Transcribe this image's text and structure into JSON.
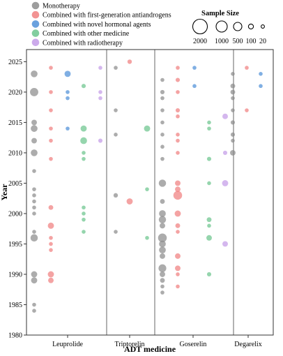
{
  "chart_data": {
    "type": "scatter",
    "title": "",
    "xlabel": "ADT medicine",
    "ylabel": "Year",
    "ylim": [
      1980,
      2027
    ],
    "yticks": [
      1980,
      1985,
      1990,
      1995,
      2000,
      2005,
      2010,
      2015,
      2020,
      2025
    ],
    "categories": [
      "Leuprolide",
      "Triptorelin",
      "Goserelin",
      "Degarelix"
    ],
    "grid": false,
    "legend": {
      "placement": "top-left",
      "entries": [
        {
          "name": "Monotherapy",
          "color": "#8c8c8c"
        },
        {
          "name": "Combined with first-generation antiandrogens",
          "color": "#f08080"
        },
        {
          "name": "Combined with novel hormonal agents",
          "color": "#4f90d8"
        },
        {
          "name": "Combined with other medicine",
          "color": "#6cc58e"
        },
        {
          "name": "Combined with radiotherapy",
          "color": "#c39be8"
        }
      ]
    },
    "size_legend": {
      "title": "Sample Size",
      "values": [
        2000,
        1000,
        500,
        100,
        20
      ],
      "labels": [
        "2000",
        "1000",
        "500",
        "100",
        "20"
      ]
    },
    "series": [
      {
        "name": "Monotherapy",
        "points": [
          {
            "medicine": "Leuprolide",
            "year": 2023,
            "size": 300
          },
          {
            "medicine": "Leuprolide",
            "year": 2020,
            "size": 450
          },
          {
            "medicine": "Leuprolide",
            "year": 2015,
            "size": 200
          },
          {
            "medicine": "Leuprolide",
            "year": 2014,
            "size": 300
          },
          {
            "medicine": "Leuprolide",
            "year": 2012,
            "size": 200
          },
          {
            "medicine": "Leuprolide",
            "year": 2010,
            "size": 300
          },
          {
            "medicine": "Leuprolide",
            "year": 2007,
            "size": 20
          },
          {
            "medicine": "Leuprolide",
            "year": 2004,
            "size": 80
          },
          {
            "medicine": "Leuprolide",
            "year": 2003,
            "size": 100
          },
          {
            "medicine": "Leuprolide",
            "year": 2002,
            "size": 100
          },
          {
            "medicine": "Leuprolide",
            "year": 2001,
            "size": 100
          },
          {
            "medicine": "Leuprolide",
            "year": 2000,
            "size": 80
          },
          {
            "medicine": "Leuprolide",
            "year": 1997,
            "size": 50
          },
          {
            "medicine": "Leuprolide",
            "year": 1996,
            "size": 350
          },
          {
            "medicine": "Leuprolide",
            "year": 1990,
            "size": 250
          },
          {
            "medicine": "Leuprolide",
            "year": 1989,
            "size": 250
          },
          {
            "medicine": "Leuprolide",
            "year": 1985,
            "size": 30
          },
          {
            "medicine": "Leuprolide",
            "year": 1984,
            "size": 100
          },
          {
            "medicine": "Triptorelin",
            "year": 2024,
            "size": 100
          },
          {
            "medicine": "Triptorelin",
            "year": 2017,
            "size": 40
          },
          {
            "medicine": "Triptorelin",
            "year": 2013,
            "size": 80
          },
          {
            "medicine": "Triptorelin",
            "year": 2003,
            "size": 130
          },
          {
            "medicine": "Triptorelin",
            "year": 1997,
            "size": 70
          },
          {
            "medicine": "Goserelin",
            "year": 2022,
            "size": 100
          },
          {
            "medicine": "Goserelin",
            "year": 2020,
            "size": 120
          },
          {
            "medicine": "Goserelin",
            "year": 2019,
            "size": 100
          },
          {
            "medicine": "Goserelin",
            "year": 2017,
            "size": 100
          },
          {
            "medicine": "Goserelin",
            "year": 2015,
            "size": 30
          },
          {
            "medicine": "Goserelin",
            "year": 2013,
            "size": 100
          },
          {
            "medicine": "Goserelin",
            "year": 2011,
            "size": 50
          },
          {
            "medicine": "Goserelin",
            "year": 2009,
            "size": 50
          },
          {
            "medicine": "Goserelin",
            "year": 2005,
            "size": 350
          },
          {
            "medicine": "Goserelin",
            "year": 2002,
            "size": 150
          },
          {
            "medicine": "Goserelin",
            "year": 2000,
            "size": 300
          },
          {
            "medicine": "Goserelin",
            "year": 1999,
            "size": 350
          },
          {
            "medicine": "Goserelin",
            "year": 1998,
            "size": 200
          },
          {
            "medicine": "Goserelin",
            "year": 1996,
            "size": 500
          },
          {
            "medicine": "Goserelin",
            "year": 1995,
            "size": 300
          },
          {
            "medicine": "Goserelin",
            "year": 1994,
            "size": 300
          },
          {
            "medicine": "Goserelin",
            "year": 1993,
            "size": 200
          },
          {
            "medicine": "Goserelin",
            "year": 1991,
            "size": 400
          },
          {
            "medicine": "Goserelin",
            "year": 1990,
            "size": 200
          },
          {
            "medicine": "Goserelin",
            "year": 1989,
            "size": 150
          },
          {
            "medicine": "Goserelin",
            "year": 1988,
            "size": 100
          },
          {
            "medicine": "Goserelin",
            "year": 1987,
            "size": 80
          },
          {
            "medicine": "Degarelix",
            "year": 2023,
            "size": 40
          },
          {
            "medicine": "Degarelix",
            "year": 2021,
            "size": 150
          },
          {
            "medicine": "Degarelix",
            "year": 2020,
            "size": 150
          },
          {
            "medicine": "Degarelix",
            "year": 2019,
            "size": 80
          },
          {
            "medicine": "Degarelix",
            "year": 2017,
            "size": 50
          },
          {
            "medicine": "Degarelix",
            "year": 2015,
            "size": 120
          },
          {
            "medicine": "Degarelix",
            "year": 2013,
            "size": 120
          },
          {
            "medicine": "Degarelix",
            "year": 2012,
            "size": 80
          },
          {
            "medicine": "Degarelix",
            "year": 2010,
            "size": 200
          }
        ]
      },
      {
        "name": "Combined with first-generation antiandrogens",
        "points": [
          {
            "medicine": "Leuprolide",
            "year": 2024,
            "size": 80
          },
          {
            "medicine": "Leuprolide",
            "year": 2020,
            "size": 50
          },
          {
            "medicine": "Leuprolide",
            "year": 2017,
            "size": 100
          },
          {
            "medicine": "Leuprolide",
            "year": 2014,
            "size": 50
          },
          {
            "medicine": "Leuprolide",
            "year": 2012,
            "size": 80
          },
          {
            "medicine": "Leuprolide",
            "year": 2009,
            "size": 80
          },
          {
            "medicine": "Leuprolide",
            "year": 2001,
            "size": 150
          },
          {
            "medicine": "Leuprolide",
            "year": 1998,
            "size": 250
          },
          {
            "medicine": "Leuprolide",
            "year": 1996,
            "size": 50
          },
          {
            "medicine": "Leuprolide",
            "year": 1995,
            "size": 80
          },
          {
            "medicine": "Leuprolide",
            "year": 1994,
            "size": 50
          },
          {
            "medicine": "Leuprolide",
            "year": 1990,
            "size": 250
          },
          {
            "medicine": "Leuprolide",
            "year": 1989,
            "size": 200
          },
          {
            "medicine": "Triptorelin",
            "year": 2025,
            "size": 130
          },
          {
            "medicine": "Triptorelin",
            "year": 2002,
            "size": 250
          },
          {
            "medicine": "Goserelin",
            "year": 2024,
            "size": 80
          },
          {
            "medicine": "Goserelin",
            "year": 2022,
            "size": 120
          },
          {
            "medicine": "Goserelin",
            "year": 2020,
            "size": 100
          },
          {
            "medicine": "Goserelin",
            "year": 2017,
            "size": 120
          },
          {
            "medicine": "Goserelin",
            "year": 2016,
            "size": 100
          },
          {
            "medicine": "Goserelin",
            "year": 2013,
            "size": 50
          },
          {
            "medicine": "Goserelin",
            "year": 2012,
            "size": 80
          },
          {
            "medicine": "Goserelin",
            "year": 2010,
            "size": 80
          },
          {
            "medicine": "Goserelin",
            "year": 2005,
            "size": 200
          },
          {
            "medicine": "Goserelin",
            "year": 2004,
            "size": 200
          },
          {
            "medicine": "Goserelin",
            "year": 2003,
            "size": 500
          },
          {
            "medicine": "Goserelin",
            "year": 2000,
            "size": 250
          },
          {
            "medicine": "Goserelin",
            "year": 1998,
            "size": 150
          },
          {
            "medicine": "Goserelin",
            "year": 1997,
            "size": 100
          },
          {
            "medicine": "Goserelin",
            "year": 1993,
            "size": 200
          },
          {
            "medicine": "Goserelin",
            "year": 1991,
            "size": 200
          },
          {
            "medicine": "Goserelin",
            "year": 1990,
            "size": 100
          },
          {
            "medicine": "Goserelin",
            "year": 1988,
            "size": 50
          },
          {
            "medicine": "Degarelix",
            "year": 2024,
            "size": 80
          },
          {
            "medicine": "Degarelix",
            "year": 2017,
            "size": 40
          }
        ]
      },
      {
        "name": "Combined with novel hormonal agents",
        "points": [
          {
            "medicine": "Leuprolide",
            "year": 2023,
            "size": 250
          },
          {
            "medicine": "Leuprolide",
            "year": 2020,
            "size": 50
          },
          {
            "medicine": "Leuprolide",
            "year": 2019,
            "size": 50
          },
          {
            "medicine": "Leuprolide",
            "year": 2014,
            "size": 40
          },
          {
            "medicine": "Goserelin",
            "year": 2024,
            "size": 40
          },
          {
            "medicine": "Goserelin",
            "year": 2021,
            "size": 60
          },
          {
            "medicine": "Degarelix",
            "year": 2023,
            "size": 80
          },
          {
            "medicine": "Degarelix",
            "year": 2021,
            "size": 80
          }
        ]
      },
      {
        "name": "Combined with other medicine",
        "points": [
          {
            "medicine": "Leuprolide",
            "year": 2021,
            "size": 120
          },
          {
            "medicine": "Leuprolide",
            "year": 2014,
            "size": 250
          },
          {
            "medicine": "Leuprolide",
            "year": 2012,
            "size": 300
          },
          {
            "medicine": "Leuprolide",
            "year": 2010,
            "size": 50
          },
          {
            "medicine": "Leuprolide",
            "year": 2009,
            "size": 50
          },
          {
            "medicine": "Leuprolide",
            "year": 2001,
            "size": 40
          },
          {
            "medicine": "Leuprolide",
            "year": 2000,
            "size": 40
          },
          {
            "medicine": "Leuprolide",
            "year": 1999,
            "size": 80
          },
          {
            "medicine": "Leuprolide",
            "year": 1997,
            "size": 100
          },
          {
            "medicine": "Triptorelin",
            "year": 2014,
            "size": 250
          },
          {
            "medicine": "Triptorelin",
            "year": 2004,
            "size": 30
          },
          {
            "medicine": "Triptorelin",
            "year": 1996,
            "size": 60
          },
          {
            "medicine": "Goserelin",
            "year": 2015,
            "size": 30
          },
          {
            "medicine": "Goserelin",
            "year": 2014,
            "size": 30
          },
          {
            "medicine": "Goserelin",
            "year": 2009,
            "size": 120
          },
          {
            "medicine": "Goserelin",
            "year": 2005,
            "size": 30
          },
          {
            "medicine": "Goserelin",
            "year": 1999,
            "size": 150
          },
          {
            "medicine": "Goserelin",
            "year": 1998,
            "size": 100
          },
          {
            "medicine": "Goserelin",
            "year": 1996,
            "size": 200
          },
          {
            "medicine": "Goserelin",
            "year": 1990,
            "size": 120
          }
        ]
      },
      {
        "name": "Combined with radiotherapy",
        "points": [
          {
            "medicine": "Leuprolide",
            "year": 2024,
            "size": 80
          },
          {
            "medicine": "Leuprolide",
            "year": 2020,
            "size": 80
          },
          {
            "medicine": "Leuprolide",
            "year": 2019,
            "size": 50
          },
          {
            "medicine": "Leuprolide",
            "year": 2012,
            "size": 120
          },
          {
            "medicine": "Goserelin",
            "year": 2016,
            "size": 200
          },
          {
            "medicine": "Goserelin",
            "year": 2010,
            "size": 120
          },
          {
            "medicine": "Goserelin",
            "year": 2005,
            "size": 250
          },
          {
            "medicine": "Goserelin",
            "year": 1995,
            "size": 200
          }
        ]
      }
    ]
  },
  "colors": {
    "Monotherapy": "#8c8c8c",
    "Combined with first-generation antiandrogens": "#f08080",
    "Combined with novel hormonal agents": "#4f90d8",
    "Combined with other medicine": "#6cc58e",
    "Combined with radiotherapy": "#c39be8"
  }
}
